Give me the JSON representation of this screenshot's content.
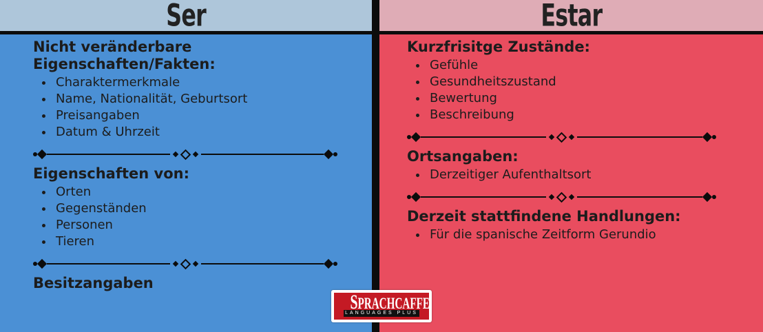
{
  "columns": [
    {
      "id": "ser",
      "title": "Ser",
      "sections": [
        {
          "heading": "Nicht veränderbare Eigenschaften/Fakten:",
          "items": [
            "Charaktermerkmale",
            "Name, Nationalität, Geburtsort",
            "Preisangaben",
            "Datum & Uhrzeit"
          ]
        },
        {
          "heading": "Eigenschaften von:",
          "items": [
            "Orten",
            "Gegenständen",
            "Personen",
            "Tieren"
          ]
        },
        {
          "heading": "Besitzangaben",
          "items": []
        }
      ]
    },
    {
      "id": "estar",
      "title": "Estar",
      "sections": [
        {
          "heading": "Kurzfrisitge Zustände:",
          "items": [
            "Gefühle",
            "Gesundheitszustand",
            "Bewertung",
            "Beschreibung"
          ]
        },
        {
          "heading": "Ortsangaben:",
          "items": [
            "Derzeitiger Aufenthaltsort"
          ]
        },
        {
          "heading": "Derzeit stattfindene Handlungen:",
          "items": [
            "Für die spanische Zeitform Gerundio"
          ]
        }
      ]
    }
  ],
  "logo": {
    "title": "SPRACHCAFFE",
    "subtitle": "LANGUAGES PLUS"
  },
  "colors": {
    "ser_header_bg": "#aec6da",
    "ser_body_bg": "#4b90d5",
    "estar_header_bg": "#dfacb6",
    "estar_body_bg": "#e94d5f",
    "rule_black": "#0c0c0c",
    "text": "#1c1c1c",
    "logo_red": "#c41a24"
  }
}
